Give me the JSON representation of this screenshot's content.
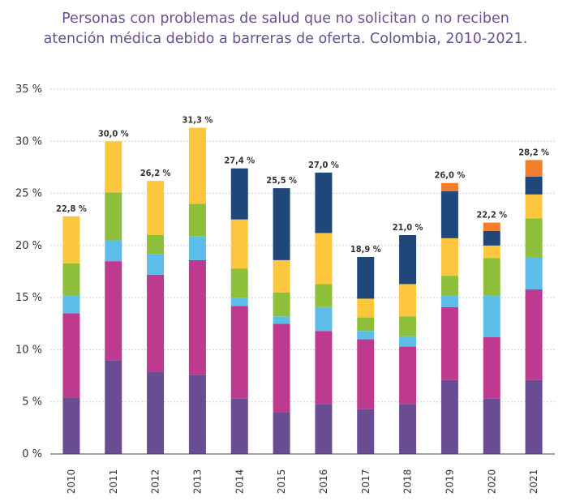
{
  "chart_data": {
    "type": "bar",
    "stacked": true,
    "title_lines": [
      "Personas con problemas de salud que no solicitan o no reciben",
      "atención médica debido a barreras de oferta. Colombia, 2010-2021."
    ],
    "categories": [
      "2010",
      "2011",
      "2012",
      "2013",
      "2014",
      "2015",
      "2016",
      "2017",
      "2018",
      "2019",
      "2020",
      "2021"
    ],
    "series": [
      {
        "color": "#6a4c93",
        "values": [
          5.4,
          9.0,
          7.9,
          7.6,
          5.3,
          4.0,
          4.8,
          4.3,
          4.8,
          7.1,
          5.3,
          7.1
        ]
      },
      {
        "color": "#be3a8e",
        "values": [
          8.1,
          9.5,
          9.3,
          11.0,
          8.9,
          8.5,
          7.0,
          6.7,
          5.5,
          7.0,
          5.9,
          8.7
        ]
      },
      {
        "color": "#5bbde8",
        "values": [
          1.7,
          2.0,
          2.0,
          2.3,
          0.8,
          0.7,
          2.3,
          0.8,
          1.0,
          1.1,
          4.0,
          3.1
        ]
      },
      {
        "color": "#8dbf3a",
        "values": [
          3.1,
          4.6,
          1.8,
          3.1,
          2.8,
          2.3,
          2.2,
          1.3,
          1.9,
          1.9,
          3.6,
          3.7
        ]
      },
      {
        "color": "#fdc73d",
        "values": [
          4.5,
          4.9,
          5.2,
          7.3,
          4.7,
          3.1,
          4.9,
          1.8,
          3.1,
          3.6,
          1.2,
          2.3
        ]
      },
      {
        "color": "#1f477a",
        "values": [
          0,
          0,
          0,
          0,
          4.9,
          6.9,
          5.8,
          4.0,
          4.7,
          4.5,
          1.4,
          1.7
        ]
      },
      {
        "color": "#f07e2c",
        "values": [
          0,
          0,
          0,
          0,
          0,
          0,
          0,
          0,
          0,
          0.8,
          0.8,
          1.6
        ]
      }
    ],
    "totals": [
      "22,8 %",
      "30,0 %",
      "26,2 %",
      "31,3 %",
      "27,4 %",
      "25,5 %",
      "27,0 %",
      "18,9 %",
      "21,0 %",
      "26,0 %",
      "22,2 %",
      "28,2 %"
    ],
    "yticks": [
      "0 %",
      "5 %",
      "10 %",
      "15 %",
      "20 %",
      "25 %",
      "30 %",
      "35 %"
    ],
    "ylim": [
      0,
      35
    ],
    "grid": true,
    "xlabel": "",
    "ylabel": ""
  }
}
